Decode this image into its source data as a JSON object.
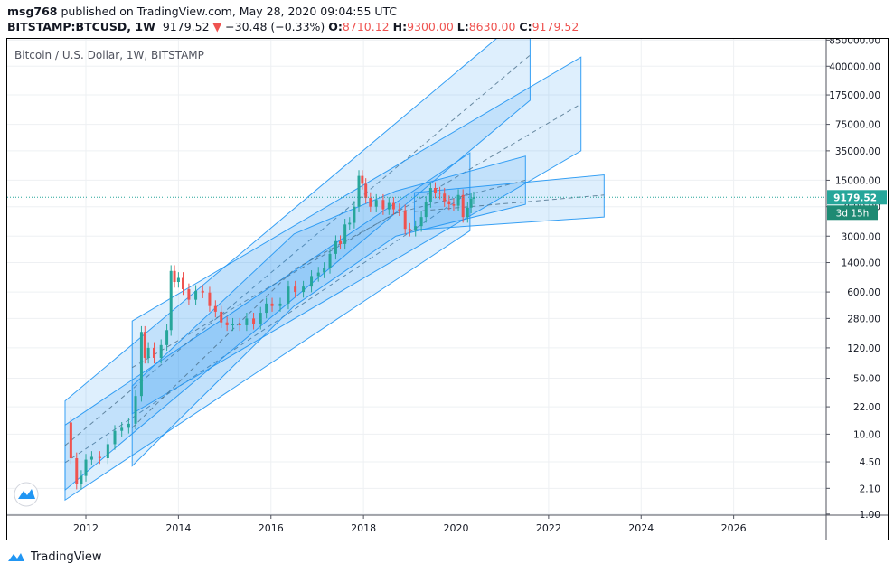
{
  "header": {
    "author": "msg768",
    "published_text": "published on TradingView.com, May 28, 2020 09:04:55 UTC",
    "symbol": "BITSTAMP:BTCUSD, 1W",
    "last": "9179.52",
    "change_arrow": "▼",
    "change": "−30.48 (−0.33%)",
    "o_label": "O:",
    "o_value": "8710.12",
    "h_label": "H:",
    "h_value": "9300.00",
    "l_label": "L:",
    "l_value": "8630.00",
    "c_label": "C:",
    "c_value": "9179.52"
  },
  "footer": {
    "brand": "TradingView",
    "icon": "tradingview-logo-icon"
  },
  "colors": {
    "up": "#26a69a",
    "down": "#ef5350",
    "channel_fill": "#2196f3",
    "channel_line": "#2196f3",
    "price_line": "#26a69a",
    "tag": "#26a69a"
  },
  "chart_data": {
    "type": "candlestick",
    "title": "Bitcoin / U.S. Dollar, 1W, BITSTAMP",
    "x_ticks": [
      "2012",
      "2014",
      "2016",
      "2018",
      "2020",
      "2022",
      "2024",
      "2026"
    ],
    "y_scale": "log",
    "y_ticks": [
      "850000.00",
      "400000.00",
      "175000.00",
      "75000.00",
      "35000.00",
      "15000.00",
      "7000.00",
      "3000.00",
      "1400.00",
      "600.00",
      "280.00",
      "120.00",
      "50.00",
      "22.00",
      "10.00",
      "4.50",
      "2.10",
      "1.00"
    ],
    "y_tick_values": [
      850000,
      400000,
      175000,
      75000,
      35000,
      15000,
      7000,
      3000,
      1400,
      600,
      280,
      120,
      50,
      22,
      10,
      4.5,
      2.1,
      1
    ],
    "x_range": [
      2010.3,
      2028.0
    ],
    "y_range": [
      0.97,
      880000
    ],
    "last_price": 9179.52,
    "last_price_label": "9179.52",
    "countdown_label": "3d 15h",
    "price_path": [
      [
        2011.6,
        14
      ],
      [
        2011.75,
        5
      ],
      [
        2011.85,
        2.4
      ],
      [
        2011.95,
        3
      ],
      [
        2012.05,
        4.8
      ],
      [
        2012.2,
        5.2
      ],
      [
        2012.4,
        5.0
      ],
      [
        2012.55,
        7.5
      ],
      [
        2012.7,
        11
      ],
      [
        2012.85,
        12
      ],
      [
        2013.0,
        13.5
      ],
      [
        2013.15,
        30
      ],
      [
        2013.25,
        190
      ],
      [
        2013.3,
        90
      ],
      [
        2013.4,
        120
      ],
      [
        2013.55,
        90
      ],
      [
        2013.7,
        130
      ],
      [
        2013.8,
        200
      ],
      [
        2013.88,
        1100
      ],
      [
        2013.95,
        800
      ],
      [
        2014.05,
        900
      ],
      [
        2014.15,
        650
      ],
      [
        2014.3,
        480
      ],
      [
        2014.45,
        620
      ],
      [
        2014.6,
        590
      ],
      [
        2014.75,
        400
      ],
      [
        2014.85,
        340
      ],
      [
        2015.0,
        250
      ],
      [
        2015.1,
        230
      ],
      [
        2015.25,
        240
      ],
      [
        2015.4,
        230
      ],
      [
        2015.55,
        280
      ],
      [
        2015.7,
        240
      ],
      [
        2015.85,
        330
      ],
      [
        2015.95,
        430
      ],
      [
        2016.1,
        400
      ],
      [
        2016.3,
        430
      ],
      [
        2016.45,
        700
      ],
      [
        2016.6,
        600
      ],
      [
        2016.8,
        700
      ],
      [
        2016.95,
        950
      ],
      [
        2017.1,
        1050
      ],
      [
        2017.2,
        1200
      ],
      [
        2017.35,
        1800
      ],
      [
        2017.45,
        2600
      ],
      [
        2017.55,
        2400
      ],
      [
        2017.65,
        4200
      ],
      [
        2017.75,
        4400
      ],
      [
        2017.85,
        7000
      ],
      [
        2017.95,
        17000
      ],
      [
        2018.0,
        13500
      ],
      [
        2018.1,
        9000
      ],
      [
        2018.2,
        7000
      ],
      [
        2018.35,
        8500
      ],
      [
        2018.5,
        6500
      ],
      [
        2018.6,
        7800
      ],
      [
        2018.7,
        6500
      ],
      [
        2018.85,
        6300
      ],
      [
        2018.95,
        3700
      ],
      [
        2019.05,
        3500
      ],
      [
        2019.2,
        4000
      ],
      [
        2019.3,
        5200
      ],
      [
        2019.4,
        8000
      ],
      [
        2019.5,
        12000
      ],
      [
        2019.6,
        10500
      ],
      [
        2019.7,
        10200
      ],
      [
        2019.8,
        8200
      ],
      [
        2019.9,
        7500
      ],
      [
        2020.0,
        7200
      ],
      [
        2020.1,
        9800
      ],
      [
        2020.2,
        5200
      ],
      [
        2020.3,
        6800
      ],
      [
        2020.35,
        8800
      ],
      [
        2020.41,
        9179.52
      ]
    ],
    "channels": [
      {
        "name": "",
        "lower": [
          [
            2011.55,
            1.5
          ],
          [
            2020.3,
            3500
          ]
        ],
        "upper": [
          [
            2011.55,
            13
          ],
          [
            2020.3,
            33000
          ]
        ],
        "mid": [
          [
            2011.55,
            4.4
          ],
          [
            2020.3,
            10700
          ]
        ],
        "right_edge": 2020.3
      },
      {
        "name": "",
        "lower": [
          [
            2011.55,
            2.0
          ],
          [
            2021.6,
            150000
          ]
        ],
        "upper": [
          [
            2011.55,
            26
          ],
          [
            2021.6,
            2000000
          ]
        ],
        "mid": [
          [
            2011.55,
            7.2
          ],
          [
            2021.6,
            550000
          ]
        ],
        "right_edge": 2021.6
      },
      {
        "name": "",
        "lower": [
          [
            2013.0,
            18
          ],
          [
            2022.7,
            35000
          ]
        ],
        "upper": [
          [
            2013.0,
            260
          ],
          [
            2022.7,
            520000
          ]
        ],
        "mid": [
          [
            2013.0,
            68
          ],
          [
            2022.7,
            135000
          ]
        ],
        "right_edge": 2022.7
      },
      {
        "name": "",
        "lower": [
          [
            2013.0,
            4
          ],
          [
            2016.5,
            400
          ],
          [
            2018.7,
            3000
          ],
          [
            2021.5,
            7500
          ]
        ],
        "upper": [
          [
            2013.0,
            40
          ],
          [
            2016.5,
            3200
          ],
          [
            2018.7,
            11000
          ],
          [
            2021.5,
            30000
          ]
        ],
        "mid": [
          [
            2013.0,
            12
          ],
          [
            2016.5,
            1150
          ],
          [
            2018.7,
            5800
          ],
          [
            2021.5,
            15000
          ]
        ],
        "right_edge": 2021.5
      },
      {
        "name": "",
        "lower": [
          [
            2019.1,
            3600
          ],
          [
            2023.2,
            5200
          ]
        ],
        "upper": [
          [
            2019.1,
            10500
          ],
          [
            2023.2,
            17500
          ]
        ],
        "mid": [
          [
            2019.1,
            6100
          ],
          [
            2023.2,
            9800
          ]
        ],
        "right_edge": 2023.2
      }
    ]
  }
}
